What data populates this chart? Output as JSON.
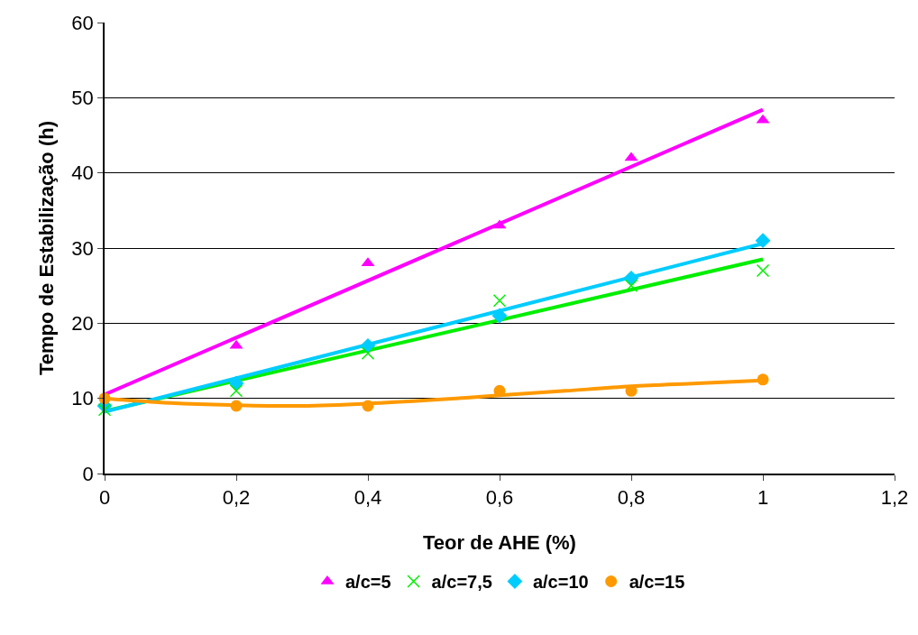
{
  "chart_data": {
    "type": "scatter",
    "xlabel": "Teor de AHE (%)",
    "ylabel": "Tempo de Estabilização (h)",
    "x": [
      0,
      0.2,
      0.4,
      0.6,
      0.8,
      1
    ],
    "series": [
      {
        "name": "a/c=5",
        "color": "#ff00ff",
        "marker": "triangle",
        "values": [
          null,
          17,
          28,
          33,
          42,
          47
        ]
      },
      {
        "name": "a/c=7,5",
        "color": "#00ee00",
        "marker": "cross",
        "values": [
          8.5,
          11,
          16,
          23,
          25,
          27
        ]
      },
      {
        "name": "a/c=10",
        "color": "#00ccff",
        "marker": "diamond",
        "values": [
          9,
          12,
          17,
          21,
          26,
          31
        ]
      },
      {
        "name": "a/c=15",
        "color": "#ff9900",
        "marker": "circle",
        "values": [
          10,
          9,
          9,
          11,
          11,
          12.5
        ]
      },
      {
        "type": "line",
        "color": "#ff00ff",
        "marker": "none",
        "x": [
          0,
          1
        ],
        "values": [
          10.5,
          48.4
        ]
      },
      {
        "type": "line",
        "color": "#00ee00",
        "marker": "none",
        "x": [
          0,
          1
        ],
        "values": [
          8.3,
          28.5
        ]
      },
      {
        "type": "line",
        "color": "#00ccff",
        "marker": "none",
        "x": [
          0,
          1
        ],
        "values": [
          8.2,
          30.6
        ]
      },
      {
        "type": "line",
        "color": "#ff9900",
        "marker": "none",
        "x": [
          0,
          0.1,
          0.2,
          0.3,
          0.4,
          0.5,
          0.6,
          0.7,
          0.8,
          0.9,
          1
        ],
        "values": [
          10,
          9.4,
          9.1,
          9.0,
          9.3,
          9.8,
          10.4,
          11,
          11.6,
          12.0,
          12.4
        ]
      }
    ],
    "xlim": [
      0,
      1.2
    ],
    "xticks": [
      0,
      {
        "value": 0.2,
        "label": "0,2"
      },
      {
        "value": 0.4,
        "label": "0,4"
      },
      {
        "value": 0.6,
        "label": "0,6"
      },
      {
        "value": 0.8,
        "label": "0,8"
      },
      1,
      {
        "value": 1.2,
        "label": "1,2"
      }
    ],
    "ylim": [
      0,
      60
    ],
    "yticks": [
      0,
      10,
      20,
      30,
      40,
      50,
      60
    ],
    "grid": "y",
    "legend": "bottom",
    "line_style": "solid"
  }
}
